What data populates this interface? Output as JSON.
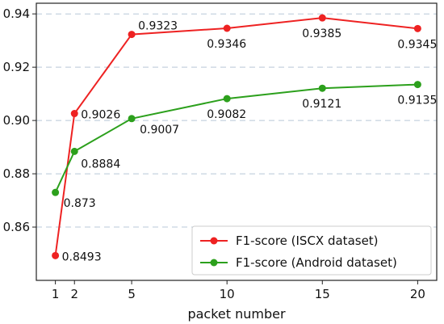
{
  "chart_data": {
    "type": "line",
    "title": "",
    "xlabel": "packet number",
    "ylabel": "",
    "x": [
      1,
      2,
      5,
      10,
      15,
      20
    ],
    "xticks": [
      "1",
      "2",
      "5",
      "10",
      "15",
      "20"
    ],
    "xlim": [
      0,
      21
    ],
    "ylim": [
      0.84,
      0.944
    ],
    "yticks": [
      "0.86",
      "0.88",
      "0.90",
      "0.92",
      "0.94"
    ],
    "grid": "horizontal dashed",
    "legend_position": "lower-right",
    "series": [
      {
        "name": "F1-score (ISCX dataset)",
        "color": "#ee2222",
        "values": [
          0.8493,
          0.9026,
          0.9323,
          0.9346,
          0.9385,
          0.9345
        ],
        "labels": [
          "0.8493",
          "0.9026",
          "0.9323",
          "0.9346",
          "0.9385",
          "0.9345"
        ]
      },
      {
        "name": "F1-score (Android dataset)",
        "color": "#2ca01c",
        "values": [
          0.873,
          0.8884,
          0.9007,
          0.9082,
          0.9121,
          0.9135
        ],
        "labels": [
          "0.873",
          "0.8884",
          "0.9007",
          "0.9082",
          "0.9121",
          "0.9135"
        ]
      }
    ]
  }
}
